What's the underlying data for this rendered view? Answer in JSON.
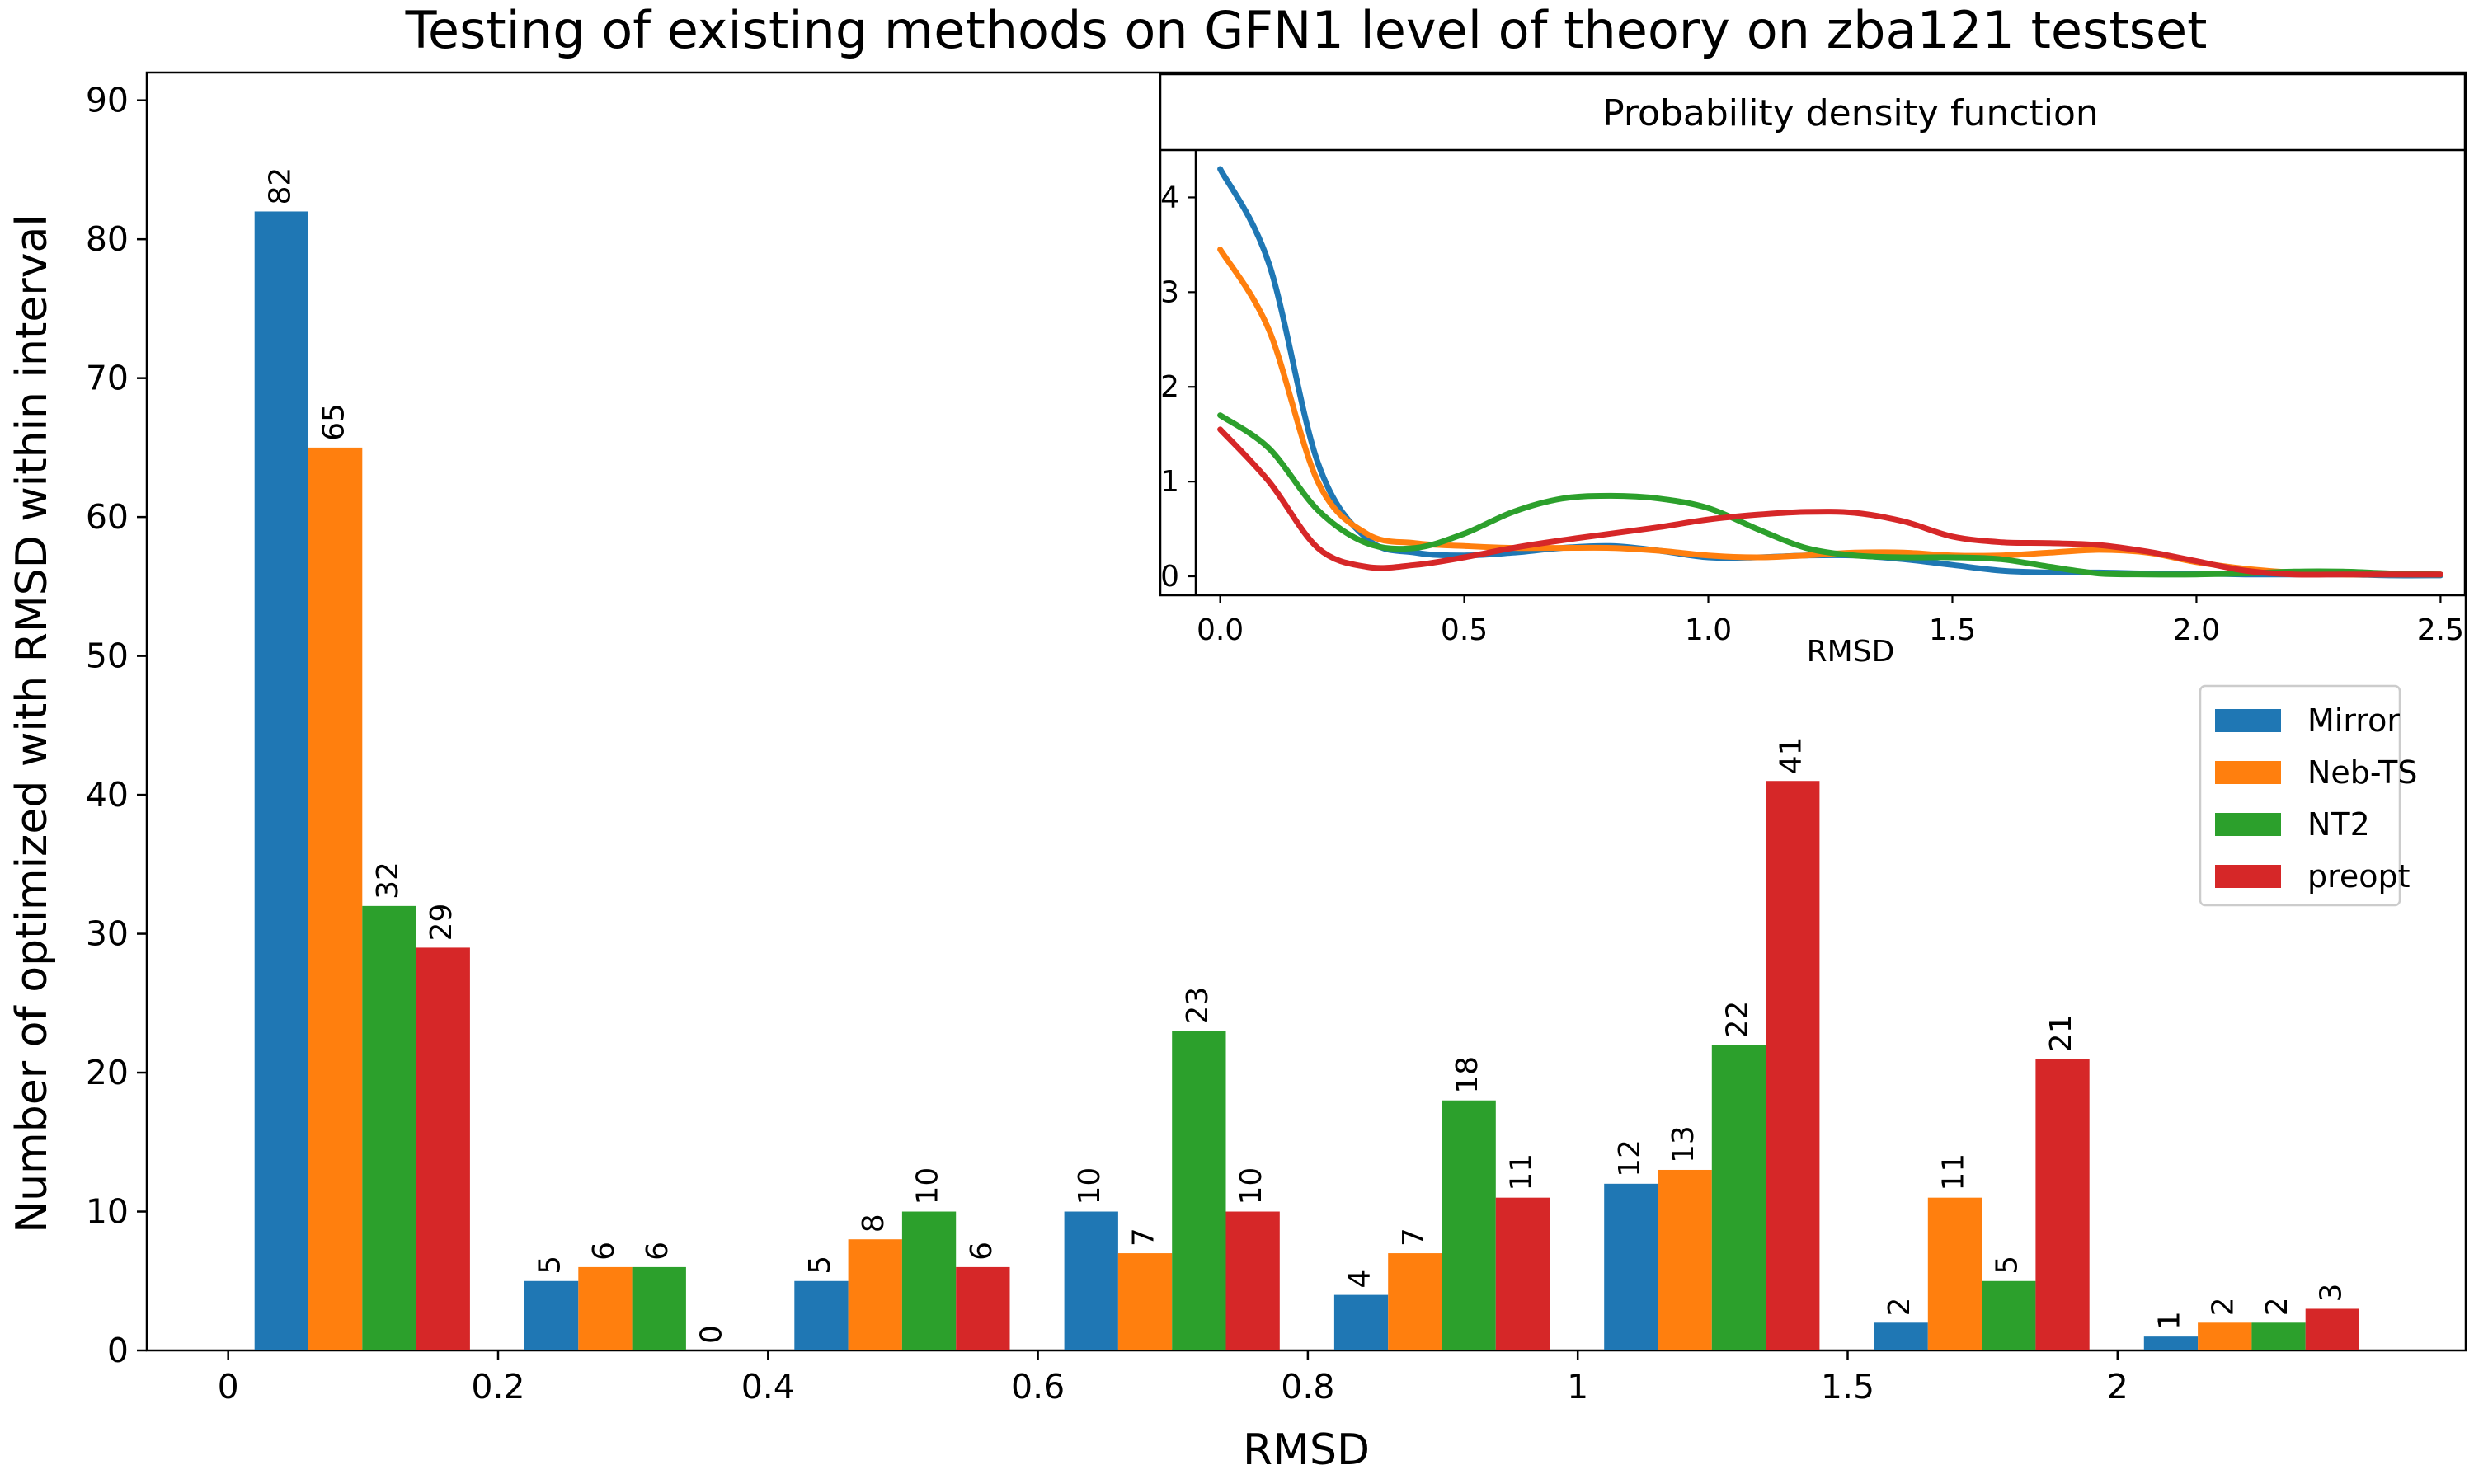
{
  "chart_data": [
    {
      "type": "bar",
      "title": "Testing of existing methods on GFN1 level of theory on zba121 testset",
      "xlabel": "RMSD",
      "ylabel": "Number of optimized with RMSD within interval",
      "ylim": [
        0,
        92
      ],
      "yticks": [
        0,
        10,
        20,
        30,
        40,
        50,
        60,
        70,
        80,
        90
      ],
      "x_tick_labels": [
        "0",
        "0.2",
        "0.4",
        "0.6",
        "0.8",
        "1",
        "1.5",
        "2"
      ],
      "series": [
        {
          "name": "Mirror",
          "color": "#1f77b4",
          "values": [
            82,
            5,
            5,
            10,
            4,
            12,
            2,
            1
          ]
        },
        {
          "name": "Neb-TS",
          "color": "#ff7f0e",
          "values": [
            65,
            6,
            8,
            7,
            7,
            13,
            11,
            2
          ]
        },
        {
          "name": "NT2",
          "color": "#2ca02c",
          "values": [
            32,
            6,
            10,
            23,
            18,
            22,
            5,
            2
          ]
        },
        {
          "name": "preopt",
          "color": "#d62728",
          "values": [
            29,
            0,
            6,
            10,
            11,
            41,
            21,
            3
          ]
        }
      ],
      "legend_position": "right"
    },
    {
      "type": "line",
      "title": "Probability density function",
      "xlabel": "RMSD",
      "xlim": [
        -0.05,
        2.55
      ],
      "ylim": [
        -0.2,
        4.5
      ],
      "xticks": [
        0.0,
        0.5,
        1.0,
        1.5,
        2.0,
        2.5
      ],
      "x_tick_labels": [
        "0.0",
        "0.5",
        "1.0",
        "1.5",
        "2.0",
        "2.5"
      ],
      "yticks": [
        0,
        1,
        2,
        3,
        4
      ],
      "y_tick_labels": [
        "0",
        "1",
        "2",
        "3",
        "4"
      ],
      "series": [
        {
          "name": "Mirror",
          "color": "#1f77b4",
          "x": [
            0,
            0.1,
            0.2,
            0.3,
            0.4,
            0.5,
            0.6,
            0.7,
            0.8,
            0.9,
            1.0,
            1.1,
            1.2,
            1.3,
            1.4,
            1.5,
            1.6,
            1.7,
            1.8,
            1.9,
            2.0,
            2.1,
            2.2,
            2.3,
            2.4,
            2.5
          ],
          "y": [
            4.3,
            3.3,
            1.2,
            0.4,
            0.25,
            0.22,
            0.25,
            0.3,
            0.32,
            0.27,
            0.2,
            0.2,
            0.22,
            0.22,
            0.18,
            0.12,
            0.06,
            0.04,
            0.04,
            0.03,
            0.03,
            0.02,
            0.02,
            0.02,
            0.01,
            0.01
          ]
        },
        {
          "name": "Neb-TS",
          "color": "#ff7f0e",
          "x": [
            0,
            0.1,
            0.2,
            0.3,
            0.4,
            0.5,
            0.6,
            0.7,
            0.8,
            0.9,
            1.0,
            1.1,
            1.2,
            1.3,
            1.4,
            1.5,
            1.6,
            1.7,
            1.8,
            1.9,
            2.0,
            2.1,
            2.2,
            2.3,
            2.4,
            2.5
          ],
          "y": [
            3.45,
            2.6,
            1.0,
            0.45,
            0.35,
            0.32,
            0.3,
            0.3,
            0.3,
            0.27,
            0.22,
            0.2,
            0.22,
            0.25,
            0.25,
            0.22,
            0.22,
            0.25,
            0.28,
            0.25,
            0.15,
            0.08,
            0.04,
            0.02,
            0.02,
            0.02
          ]
        },
        {
          "name": "NT2",
          "color": "#2ca02c",
          "x": [
            0,
            0.1,
            0.2,
            0.3,
            0.4,
            0.5,
            0.6,
            0.7,
            0.8,
            0.9,
            1.0,
            1.1,
            1.2,
            1.3,
            1.4,
            1.5,
            1.6,
            1.7,
            1.8,
            1.9,
            2.0,
            2.1,
            2.2,
            2.3,
            2.4,
            2.5
          ],
          "y": [
            1.7,
            1.35,
            0.7,
            0.35,
            0.3,
            0.45,
            0.68,
            0.82,
            0.85,
            0.82,
            0.72,
            0.5,
            0.3,
            0.22,
            0.2,
            0.2,
            0.18,
            0.1,
            0.03,
            0.02,
            0.02,
            0.03,
            0.05,
            0.05,
            0.03,
            0.02
          ]
        },
        {
          "name": "preopt",
          "color": "#d62728",
          "x": [
            0,
            0.1,
            0.2,
            0.3,
            0.4,
            0.5,
            0.6,
            0.7,
            0.8,
            0.9,
            1.0,
            1.1,
            1.2,
            1.3,
            1.4,
            1.5,
            1.6,
            1.7,
            1.8,
            1.9,
            2.0,
            2.1,
            2.2,
            2.3,
            2.4,
            2.5
          ],
          "y": [
            1.55,
            1.0,
            0.3,
            0.1,
            0.12,
            0.2,
            0.3,
            0.38,
            0.45,
            0.52,
            0.6,
            0.65,
            0.68,
            0.67,
            0.58,
            0.42,
            0.36,
            0.35,
            0.33,
            0.26,
            0.16,
            0.06,
            0.02,
            0.02,
            0.02,
            0.02
          ]
        }
      ]
    }
  ]
}
